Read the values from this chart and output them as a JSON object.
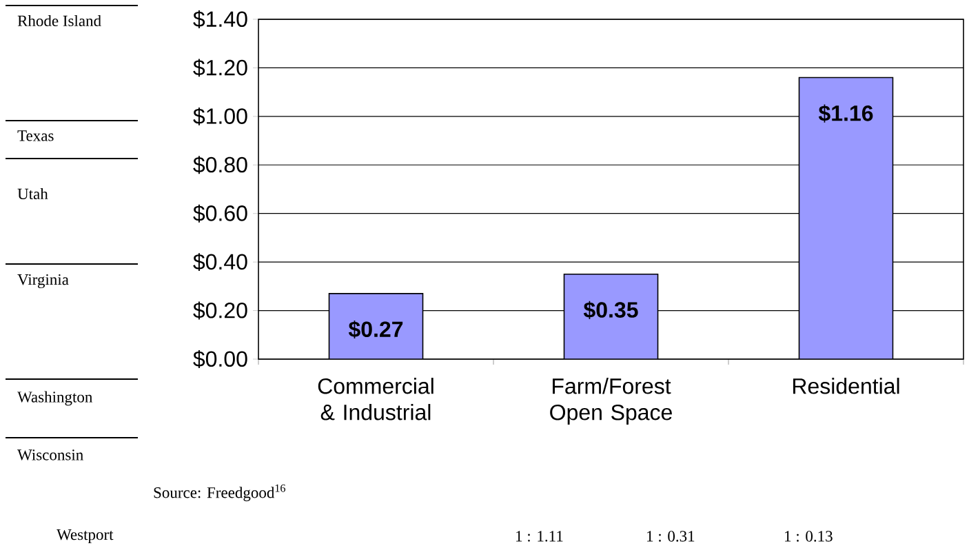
{
  "chart_data": {
    "type": "bar",
    "categories": [
      "Commercial & Industrial",
      "Farm/Forest Open Space",
      "Residential"
    ],
    "values": [
      0.27,
      0.35,
      1.16
    ],
    "color": "#9999ff",
    "value_labels": [
      "$0.27",
      "$0.35",
      "$1.16"
    ],
    "ylim": [
      0,
      1.4
    ],
    "yticks": [
      {
        "value": 0,
        "label": "$0.00"
      },
      {
        "value": 0.2,
        "label": "$0.20"
      },
      {
        "value": 0.4,
        "label": "$0.40"
      },
      {
        "value": 0.6,
        "label": "$0.60"
      },
      {
        "value": 0.8,
        "label": "$0.80"
      },
      {
        "value": 1.0,
        "label": "$1.00"
      },
      {
        "value": 1.2,
        "label": "$1.20"
      },
      {
        "value": 1.4,
        "label": "$1.40"
      }
    ],
    "grid": "y",
    "annotations": [
      "Rhode Island",
      "Texas",
      "Utah",
      "Virginia",
      "Washington",
      "Wisconsin",
      "Source: Freedgood$^{16}$",
      "Westport",
      "1 : 1.11",
      "1 : 0.31",
      "1 : 0.13"
    ]
  }
}
